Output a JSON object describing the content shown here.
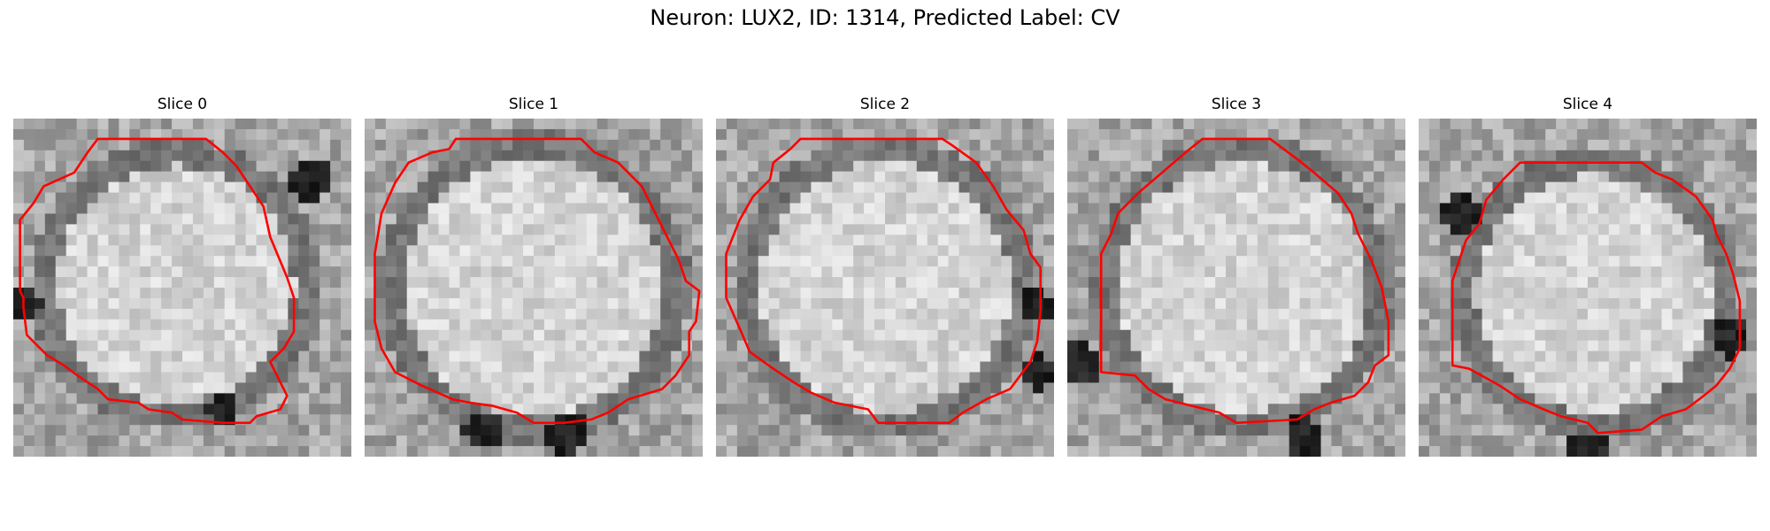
{
  "figure": {
    "title": "Neuron: LUX2, ID: 1314, Predicted Label: CV"
  },
  "panels": [
    {
      "title": "Slice 0",
      "center": [
        0.48,
        0.49
      ],
      "radius": 0.37,
      "contour": [
        [
          0.25,
          0.06
        ],
        [
          0.57,
          0.06
        ],
        [
          0.62,
          0.1
        ],
        [
          0.66,
          0.14
        ],
        [
          0.7,
          0.2
        ],
        [
          0.74,
          0.26
        ],
        [
          0.76,
          0.35
        ],
        [
          0.81,
          0.47
        ],
        [
          0.83,
          0.53
        ],
        [
          0.83,
          0.63
        ],
        [
          0.8,
          0.68
        ],
        [
          0.76,
          0.72
        ],
        [
          0.81,
          0.82
        ],
        [
          0.79,
          0.86
        ],
        [
          0.72,
          0.88
        ],
        [
          0.7,
          0.9
        ],
        [
          0.62,
          0.9
        ],
        [
          0.5,
          0.89
        ],
        [
          0.47,
          0.87
        ],
        [
          0.4,
          0.86
        ],
        [
          0.37,
          0.84
        ],
        [
          0.28,
          0.83
        ],
        [
          0.25,
          0.8
        ],
        [
          0.19,
          0.76
        ],
        [
          0.15,
          0.73
        ],
        [
          0.1,
          0.7
        ],
        [
          0.04,
          0.64
        ],
        [
          0.03,
          0.56
        ],
        [
          0.03,
          0.53
        ],
        [
          0.02,
          0.51
        ],
        [
          0.02,
          0.3
        ],
        [
          0.06,
          0.25
        ],
        [
          0.09,
          0.2
        ],
        [
          0.18,
          0.16
        ],
        [
          0.22,
          0.1
        ]
      ],
      "dark": [
        [
          0.03,
          0.55,
          0.05
        ],
        [
          0.62,
          0.86,
          0.05
        ],
        [
          0.88,
          0.18,
          0.06
        ]
      ]
    },
    {
      "title": "Slice 1",
      "center": [
        0.5,
        0.5
      ],
      "radius": 0.4,
      "contour": [
        [
          0.27,
          0.06
        ],
        [
          0.64,
          0.06
        ],
        [
          0.68,
          0.1
        ],
        [
          0.75,
          0.13
        ],
        [
          0.82,
          0.2
        ],
        [
          0.86,
          0.28
        ],
        [
          0.9,
          0.36
        ],
        [
          0.93,
          0.42
        ],
        [
          0.95,
          0.48
        ],
        [
          0.99,
          0.51
        ],
        [
          0.98,
          0.6
        ],
        [
          0.96,
          0.63
        ],
        [
          0.96,
          0.7
        ],
        [
          0.92,
          0.76
        ],
        [
          0.88,
          0.8
        ],
        [
          0.78,
          0.83
        ],
        [
          0.72,
          0.87
        ],
        [
          0.67,
          0.89
        ],
        [
          0.59,
          0.9
        ],
        [
          0.5,
          0.9
        ],
        [
          0.45,
          0.87
        ],
        [
          0.38,
          0.85
        ],
        [
          0.31,
          0.84
        ],
        [
          0.26,
          0.83
        ],
        [
          0.17,
          0.79
        ],
        [
          0.09,
          0.75
        ],
        [
          0.05,
          0.68
        ],
        [
          0.03,
          0.6
        ],
        [
          0.03,
          0.4
        ],
        [
          0.05,
          0.28
        ],
        [
          0.09,
          0.19
        ],
        [
          0.13,
          0.13
        ],
        [
          0.2,
          0.1
        ],
        [
          0.25,
          0.09
        ]
      ],
      "dark": [
        [
          0.35,
          0.92,
          0.06
        ],
        [
          0.6,
          0.93,
          0.06
        ]
      ]
    },
    {
      "title": "Slice 2",
      "center": [
        0.5,
        0.5
      ],
      "radius": 0.39,
      "contour": [
        [
          0.25,
          0.06
        ],
        [
          0.67,
          0.06
        ],
        [
          0.7,
          0.08
        ],
        [
          0.77,
          0.13
        ],
        [
          0.82,
          0.2
        ],
        [
          0.86,
          0.27
        ],
        [
          0.91,
          0.33
        ],
        [
          0.93,
          0.4
        ],
        [
          0.96,
          0.44
        ],
        [
          0.96,
          0.57
        ],
        [
          0.95,
          0.66
        ],
        [
          0.93,
          0.72
        ],
        [
          0.87,
          0.8
        ],
        [
          0.8,
          0.83
        ],
        [
          0.73,
          0.87
        ],
        [
          0.69,
          0.9
        ],
        [
          0.48,
          0.9
        ],
        [
          0.45,
          0.86
        ],
        [
          0.35,
          0.84
        ],
        [
          0.28,
          0.81
        ],
        [
          0.23,
          0.78
        ],
        [
          0.17,
          0.74
        ],
        [
          0.1,
          0.69
        ],
        [
          0.07,
          0.62
        ],
        [
          0.03,
          0.53
        ],
        [
          0.03,
          0.4
        ],
        [
          0.07,
          0.3
        ],
        [
          0.11,
          0.23
        ],
        [
          0.16,
          0.18
        ],
        [
          0.17,
          0.13
        ],
        [
          0.22,
          0.09
        ]
      ],
      "dark": [
        [
          0.96,
          0.75,
          0.05
        ],
        [
          0.94,
          0.56,
          0.05
        ]
      ]
    },
    {
      "title": "Slice 3",
      "center": [
        0.52,
        0.5
      ],
      "radius": 0.39,
      "contour": [
        [
          0.4,
          0.06
        ],
        [
          0.6,
          0.06
        ],
        [
          0.64,
          0.09
        ],
        [
          0.68,
          0.12
        ],
        [
          0.73,
          0.16
        ],
        [
          0.8,
          0.22
        ],
        [
          0.84,
          0.28
        ],
        [
          0.86,
          0.34
        ],
        [
          0.9,
          0.42
        ],
        [
          0.93,
          0.5
        ],
        [
          0.95,
          0.6
        ],
        [
          0.95,
          0.7
        ],
        [
          0.91,
          0.73
        ],
        [
          0.89,
          0.78
        ],
        [
          0.85,
          0.82
        ],
        [
          0.78,
          0.84
        ],
        [
          0.73,
          0.86
        ],
        [
          0.68,
          0.89
        ],
        [
          0.5,
          0.9
        ],
        [
          0.45,
          0.87
        ],
        [
          0.37,
          0.85
        ],
        [
          0.29,
          0.83
        ],
        [
          0.24,
          0.8
        ],
        [
          0.2,
          0.76
        ],
        [
          0.1,
          0.75
        ],
        [
          0.1,
          0.4
        ],
        [
          0.13,
          0.34
        ],
        [
          0.15,
          0.28
        ],
        [
          0.21,
          0.22
        ],
        [
          0.28,
          0.16
        ],
        [
          0.35,
          0.1
        ]
      ],
      "dark": [
        [
          0.7,
          0.94,
          0.06
        ],
        [
          0.05,
          0.74,
          0.05
        ],
        [
          0.03,
          0.69,
          0.04
        ]
      ]
    },
    {
      "title": "Slice 4",
      "center": [
        0.52,
        0.52
      ],
      "radius": 0.37,
      "contour": [
        [
          0.3,
          0.13
        ],
        [
          0.66,
          0.13
        ],
        [
          0.7,
          0.16
        ],
        [
          0.75,
          0.18
        ],
        [
          0.82,
          0.23
        ],
        [
          0.87,
          0.3
        ],
        [
          0.88,
          0.34
        ],
        [
          0.91,
          0.4
        ],
        [
          0.93,
          0.46
        ],
        [
          0.95,
          0.54
        ],
        [
          0.95,
          0.68
        ],
        [
          0.92,
          0.74
        ],
        [
          0.88,
          0.79
        ],
        [
          0.83,
          0.83
        ],
        [
          0.79,
          0.86
        ],
        [
          0.72,
          0.88
        ],
        [
          0.66,
          0.92
        ],
        [
          0.53,
          0.93
        ],
        [
          0.5,
          0.9
        ],
        [
          0.42,
          0.88
        ],
        [
          0.37,
          0.86
        ],
        [
          0.3,
          0.83
        ],
        [
          0.24,
          0.79
        ],
        [
          0.15,
          0.74
        ],
        [
          0.1,
          0.73
        ],
        [
          0.1,
          0.48
        ],
        [
          0.12,
          0.42
        ],
        [
          0.14,
          0.36
        ],
        [
          0.18,
          0.31
        ],
        [
          0.2,
          0.24
        ],
        [
          0.25,
          0.18
        ]
      ],
      "dark": [
        [
          0.92,
          0.65,
          0.06
        ],
        [
          0.5,
          0.97,
          0.05
        ],
        [
          0.12,
          0.28,
          0.06
        ]
      ]
    }
  ]
}
